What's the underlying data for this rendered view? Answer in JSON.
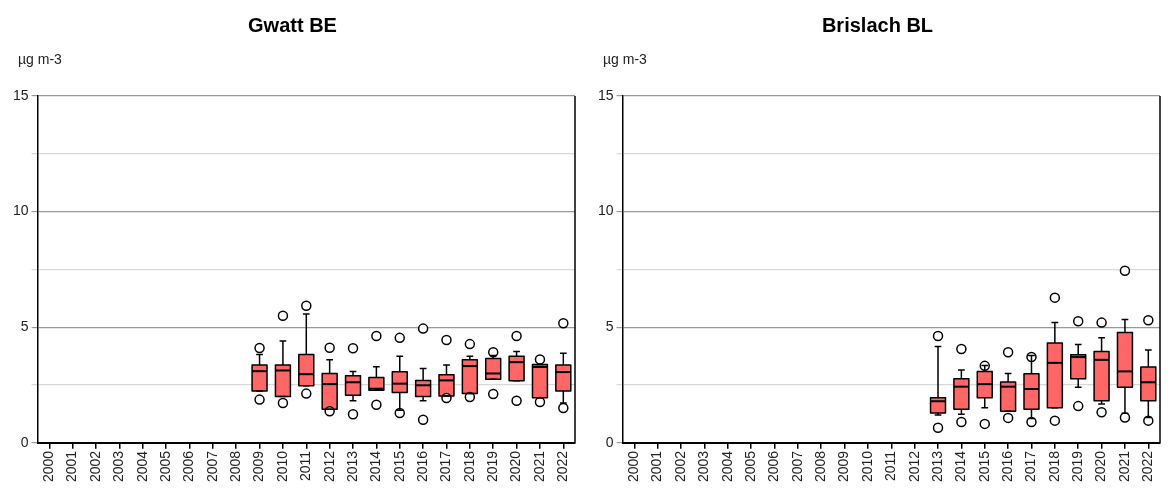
{
  "chart_data": [
    {
      "type": "box",
      "title": "Gwatt BE",
      "ylabel": "µg m-3",
      "color": "#ff6666",
      "grid": "y",
      "legend": false,
      "ylim": [
        0,
        15
      ],
      "yticks": [
        0,
        {
          "value": 2.5,
          "label": null
        },
        5,
        {
          "value": 7.5,
          "label": null
        },
        10,
        {
          "value": 12.5,
          "label": null
        },
        15
      ],
      "categories": [
        "2000",
        "2001",
        "2002",
        "2003",
        "2004",
        "2005",
        "2006",
        "2007",
        "2008",
        "2009",
        "2010",
        "2011",
        "2012",
        "2013",
        "2014",
        "2015",
        "2016",
        "2017",
        "2018",
        "2019",
        "2020",
        "2021",
        "2022"
      ],
      "boxes": [
        null,
        null,
        null,
        null,
        null,
        null,
        null,
        null,
        null,
        {
          "low": 2.24,
          "q1": 2.24,
          "median": 3.1,
          "q3": 3.37,
          "high": 3.82,
          "outliers": [
            4.1,
            1.87
          ]
        },
        {
          "low": 2.01,
          "q1": 2.01,
          "median": 3.13,
          "q3": 3.37,
          "high": 4.4,
          "outliers": [
            5.5,
            1.72
          ]
        },
        {
          "low": 2.47,
          "q1": 2.47,
          "median": 2.97,
          "q3": 3.82,
          "high": 5.57,
          "outliers": [
            5.93,
            2.13
          ]
        },
        {
          "low": 1.45,
          "q1": 1.45,
          "median": 2.54,
          "q3": 3.0,
          "high": 3.59,
          "outliers": [
            4.11,
            1.37
          ]
        },
        {
          "low": 1.82,
          "q1": 2.06,
          "median": 2.62,
          "q3": 2.9,
          "high": 3.09,
          "outliers": [
            4.09,
            1.24
          ]
        },
        {
          "low": 2.27,
          "q1": 2.27,
          "median": 2.34,
          "q3": 2.83,
          "high": 3.29,
          "outliers": [
            4.62,
            1.65
          ]
        },
        {
          "low": 1.41,
          "q1": 2.18,
          "median": 2.56,
          "q3": 3.07,
          "high": 3.74,
          "outliers": [
            4.54,
            1.29
          ]
        },
        {
          "low": 1.82,
          "q1": 2.01,
          "median": 2.49,
          "q3": 2.7,
          "high": 3.22,
          "outliers": [
            4.94,
            1.0
          ]
        },
        {
          "low": 2.03,
          "q1": 2.03,
          "median": 2.7,
          "q3": 2.94,
          "high": 3.37,
          "outliers": [
            4.45,
            1.94
          ]
        },
        {
          "low": 2.13,
          "q1": 2.13,
          "median": 3.32,
          "q3": 3.59,
          "high": 3.74,
          "outliers": [
            4.27,
            1.98
          ]
        },
        {
          "low": 2.75,
          "q1": 2.75,
          "median": 3.0,
          "q3": 3.65,
          "high": 3.78,
          "outliers": [
            3.92,
            2.11
          ]
        },
        {
          "low": 2.69,
          "q1": 2.69,
          "median": 3.49,
          "q3": 3.74,
          "high": 3.95,
          "outliers": [
            4.62,
            1.82
          ]
        },
        {
          "low": 1.95,
          "q1": 1.95,
          "median": 3.28,
          "q3": 3.39,
          "high": 3.39,
          "outliers": [
            3.61,
            1.77
          ]
        },
        {
          "low": 1.72,
          "q1": 2.24,
          "median": 3.06,
          "q3": 3.37,
          "high": 3.88,
          "outliers": [
            5.17,
            1.51
          ]
        }
      ]
    },
    {
      "type": "box",
      "title": "Brislach BL",
      "ylabel": "µg m-3",
      "color": "#ff6666",
      "grid": "y",
      "legend": false,
      "ylim": [
        0,
        15
      ],
      "yticks": [
        0,
        {
          "value": 2.5,
          "label": null
        },
        5,
        {
          "value": 7.5,
          "label": null
        },
        10,
        {
          "value": 12.5,
          "label": null
        },
        15
      ],
      "categories": [
        "2000",
        "2001",
        "2002",
        "2003",
        "2004",
        "2005",
        "2006",
        "2007",
        "2008",
        "2009",
        "2010",
        "2011",
        "2012",
        "2013",
        "2014",
        "2015",
        "2016",
        "2017",
        "2018",
        "2019",
        "2020",
        "2021",
        "2022"
      ],
      "boxes": [
        null,
        null,
        null,
        null,
        null,
        null,
        null,
        null,
        null,
        null,
        null,
        null,
        null,
        {
          "low": 1.2,
          "q1": 1.29,
          "median": 1.8,
          "q3": 1.95,
          "high": 4.17,
          "outliers": [
            4.62,
            0.65
          ]
        },
        {
          "low": 1.24,
          "q1": 1.45,
          "median": 2.43,
          "q3": 2.77,
          "high": 3.15,
          "outliers": [
            4.06,
            0.9
          ]
        },
        {
          "low": 1.52,
          "q1": 1.95,
          "median": 2.54,
          "q3": 3.09,
          "high": 3.35,
          "outliers": [
            3.33,
            0.82
          ]
        },
        {
          "low": 1.37,
          "q1": 1.37,
          "median": 2.43,
          "q3": 2.63,
          "high": 3.0,
          "outliers": [
            3.92,
            1.08
          ]
        },
        {
          "low": 1.05,
          "q1": 1.45,
          "median": 2.33,
          "q3": 2.99,
          "high": 3.78,
          "outliers": [
            3.71,
            0.9
          ]
        },
        {
          "low": 1.52,
          "q1": 1.52,
          "median": 3.46,
          "q3": 4.32,
          "high": 5.2,
          "outliers": [
            6.28,
            0.96
          ]
        },
        {
          "low": 2.41,
          "q1": 2.77,
          "median": 3.71,
          "q3": 3.81,
          "high": 4.25,
          "outliers": [
            5.26,
            1.59
          ]
        },
        {
          "low": 1.68,
          "q1": 1.82,
          "median": 3.59,
          "q3": 3.95,
          "high": 4.54,
          "outliers": [
            5.2,
            1.32
          ]
        },
        {
          "low": 1.28,
          "q1": 2.4,
          "median": 3.09,
          "q3": 4.77,
          "high": 5.34,
          "outliers": [
            7.44,
            1.1
          ]
        },
        {
          "low": 1.1,
          "q1": 1.82,
          "median": 2.62,
          "q3": 3.28,
          "high": 4.02,
          "outliers": [
            5.3,
            0.96
          ]
        }
      ]
    }
  ]
}
